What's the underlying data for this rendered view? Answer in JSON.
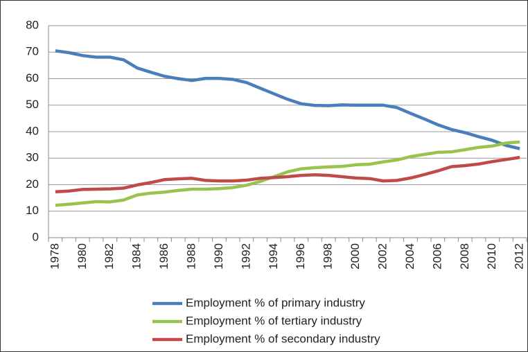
{
  "chart_data": {
    "type": "line",
    "categories": [
      "1978",
      null,
      "1980",
      null,
      "1982",
      null,
      "1984",
      null,
      "1986",
      null,
      "1988",
      null,
      "1990",
      null,
      "1992",
      null,
      "1994",
      null,
      "1996",
      null,
      "1998",
      null,
      "2000",
      null,
      "2002",
      null,
      "2004",
      null,
      "2006",
      null,
      "2008",
      null,
      "2010",
      null,
      "2012"
    ],
    "series": [
      {
        "name": "Employment % of primary industry",
        "color": "#4a7ebb",
        "values": [
          70.5,
          69.8,
          68.7,
          68.1,
          68.1,
          67.1,
          64.0,
          62.4,
          60.9,
          60.0,
          59.3,
          60.1,
          60.1,
          59.7,
          58.5,
          56.4,
          54.3,
          52.2,
          50.5,
          49.9,
          49.8,
          50.1,
          50.0,
          50.0,
          50.0,
          49.1,
          46.9,
          44.8,
          42.6,
          40.8,
          39.6,
          38.1,
          36.7,
          34.8,
          33.6
        ]
      },
      {
        "name": "Employment % of tertiary industry",
        "color": "#98c34f",
        "values": [
          12.2,
          12.6,
          13.1,
          13.6,
          13.5,
          14.2,
          16.1,
          16.8,
          17.2,
          17.8,
          18.3,
          18.3,
          18.5,
          18.9,
          19.8,
          21.2,
          23.0,
          24.8,
          26.0,
          26.4,
          26.7,
          26.9,
          27.5,
          27.7,
          28.6,
          29.3,
          30.6,
          31.4,
          32.2,
          32.4,
          33.2,
          34.1,
          34.6,
          35.7,
          36.1
        ]
      },
      {
        "name": "Employment % of secondary industry",
        "color": "#be4b48",
        "values": [
          17.3,
          17.6,
          18.2,
          18.3,
          18.4,
          18.7,
          19.9,
          20.8,
          21.9,
          22.2,
          22.4,
          21.6,
          21.4,
          21.4,
          21.7,
          22.4,
          22.7,
          23.0,
          23.5,
          23.7,
          23.5,
          23.0,
          22.5,
          22.3,
          21.4,
          21.6,
          22.5,
          23.8,
          25.2,
          26.8,
          27.2,
          27.8,
          28.7,
          29.5,
          30.3
        ]
      }
    ],
    "ylim": [
      0,
      80
    ],
    "yticks": [
      0,
      10,
      20,
      30,
      40,
      50,
      60,
      70,
      80
    ],
    "grid": true,
    "legend": "bottom"
  }
}
